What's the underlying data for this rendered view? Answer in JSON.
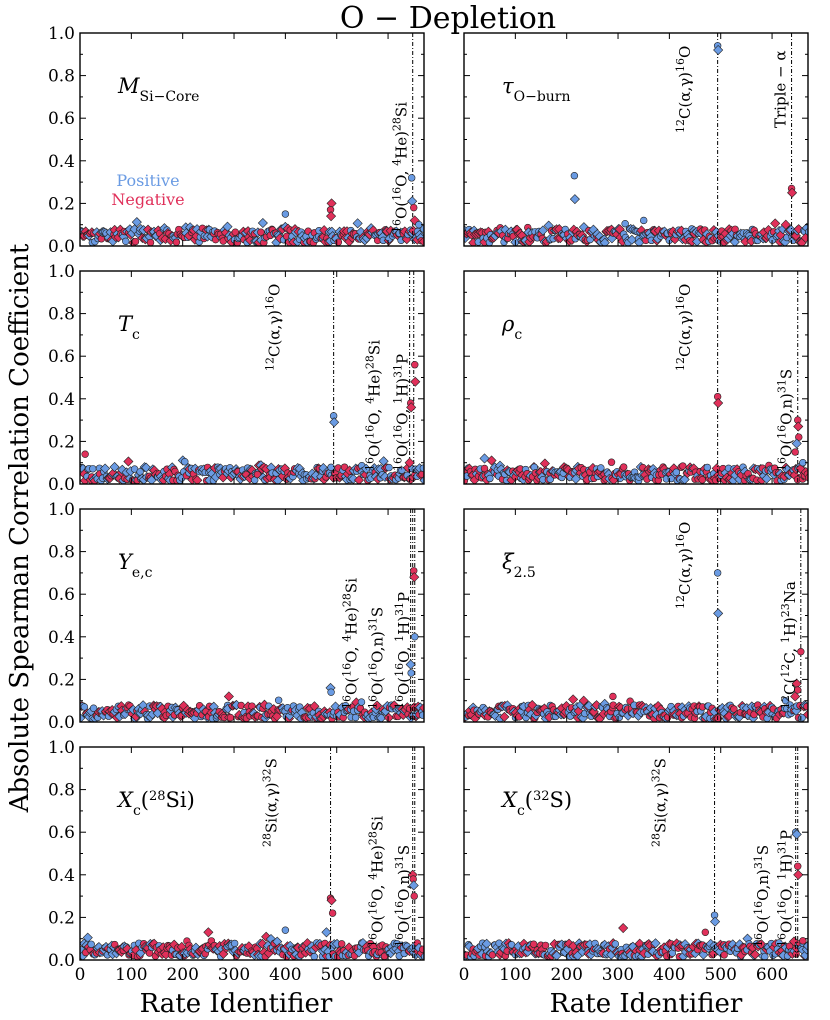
{
  "figure": {
    "title": "O − Depletion",
    "ylabel": "Absolute Spearman Correlation Coefficient",
    "xlabel": "Rate Identifier",
    "legend": [
      {
        "label": "Positive",
        "color": "#6a9be3"
      },
      {
        "label": "Negative",
        "color": "#e0305a"
      }
    ],
    "colors": {
      "positive": "#6a9be3",
      "negative": "#e0305a"
    }
  },
  "chart_data": [
    {
      "type": "scatter",
      "title": "M_Si-Core",
      "label_main": "M",
      "label_sub": "Si−Core",
      "xlim": [
        0,
        670
      ],
      "ylim": [
        0,
        1.0
      ],
      "xticks": [
        "0",
        "100",
        "200",
        "300",
        "400",
        "500",
        "600"
      ],
      "yticks": [
        "0.0",
        "0.2",
        "0.4",
        "0.6",
        "0.8",
        "1.0"
      ],
      "vlines": [
        648
      ],
      "annotations": [
        {
          "text": "16O(16O, 4He)28Si",
          "x": 648
        }
      ],
      "highlights": [
        {
          "x": 400,
          "y": 0.15,
          "sign": "positive"
        },
        {
          "x": 490,
          "y": 0.2,
          "sign": "negative"
        },
        {
          "x": 488,
          "y": 0.17,
          "sign": "negative"
        },
        {
          "x": 489,
          "y": 0.14,
          "sign": "negative"
        },
        {
          "x": 646,
          "y": 0.32,
          "sign": "positive"
        },
        {
          "x": 647,
          "y": 0.21,
          "sign": "positive"
        },
        {
          "x": 650,
          "y": 0.18,
          "sign": "negative"
        },
        {
          "x": 652,
          "y": 0.12,
          "sign": "negative"
        },
        {
          "x": 660,
          "y": 0.1,
          "sign": "positive"
        }
      ]
    },
    {
      "type": "scatter",
      "title": "tau_O-burn",
      "label_main": "τ",
      "label_sub": "O−burn",
      "xlim": [
        0,
        670
      ],
      "ylim": [
        0,
        1.0
      ],
      "xticks": [
        "0",
        "100",
        "200",
        "300",
        "400",
        "500",
        "600"
      ],
      "yticks": [
        "0.0",
        "0.2",
        "0.4",
        "0.6",
        "0.8",
        "1.0"
      ],
      "vlines": [
        494,
        638
      ],
      "annotations": [
        {
          "text": "12C(α,γ)16O",
          "x": 494
        },
        {
          "text": "Triple − α",
          "x": 638
        }
      ],
      "highlights": [
        {
          "x": 494,
          "y": 0.94,
          "sign": "positive"
        },
        {
          "x": 495,
          "y": 0.92,
          "sign": "positive"
        },
        {
          "x": 215,
          "y": 0.33,
          "sign": "positive"
        },
        {
          "x": 216,
          "y": 0.22,
          "sign": "positive"
        },
        {
          "x": 638,
          "y": 0.27,
          "sign": "negative"
        },
        {
          "x": 639,
          "y": 0.25,
          "sign": "negative"
        },
        {
          "x": 350,
          "y": 0.12,
          "sign": "positive"
        }
      ]
    },
    {
      "type": "scatter",
      "title": "T_c",
      "label_main": "T",
      "label_sub": "c",
      "xlim": [
        0,
        670
      ],
      "ylim": [
        0,
        1.0
      ],
      "xticks": [
        "0",
        "100",
        "200",
        "300",
        "400",
        "500",
        "600"
      ],
      "yticks": [
        "0.0",
        "0.2",
        "0.4",
        "0.6",
        "0.8",
        "1.0"
      ],
      "vlines": [
        494,
        642,
        650
      ],
      "annotations": [
        {
          "text": "12C(α,γ)16O",
          "x": 494
        },
        {
          "text": "16O(16O, 4He)28Si",
          "x": 642
        },
        {
          "text": "16O(16O, 1H)31P",
          "x": 650
        }
      ],
      "highlights": [
        {
          "x": 494,
          "y": 0.32,
          "sign": "positive"
        },
        {
          "x": 495,
          "y": 0.29,
          "sign": "positive"
        },
        {
          "x": 652,
          "y": 0.56,
          "sign": "negative"
        },
        {
          "x": 653,
          "y": 0.48,
          "sign": "negative"
        },
        {
          "x": 644,
          "y": 0.38,
          "sign": "negative"
        },
        {
          "x": 645,
          "y": 0.36,
          "sign": "negative"
        },
        {
          "x": 10,
          "y": 0.14,
          "sign": "negative"
        },
        {
          "x": 642,
          "y": 0.1,
          "sign": "negative"
        }
      ]
    },
    {
      "type": "scatter",
      "title": "rho_c",
      "label_main": "ρ",
      "label_sub": "c",
      "xlim": [
        0,
        670
      ],
      "ylim": [
        0,
        1.0
      ],
      "xticks": [
        "0",
        "100",
        "200",
        "300",
        "400",
        "500",
        "600"
      ],
      "yticks": [
        "0.0",
        "0.2",
        "0.4",
        "0.6",
        "0.8",
        "1.0"
      ],
      "vlines": [
        494,
        650
      ],
      "annotations": [
        {
          "text": "12C(α,γ)16O",
          "x": 494
        },
        {
          "text": "16O(16O,n)31S",
          "x": 650
        }
      ],
      "highlights": [
        {
          "x": 494,
          "y": 0.41,
          "sign": "negative"
        },
        {
          "x": 495,
          "y": 0.38,
          "sign": "negative"
        },
        {
          "x": 650,
          "y": 0.3,
          "sign": "negative"
        },
        {
          "x": 651,
          "y": 0.27,
          "sign": "negative"
        },
        {
          "x": 652,
          "y": 0.22,
          "sign": "negative"
        },
        {
          "x": 648,
          "y": 0.19,
          "sign": "positive"
        },
        {
          "x": 645,
          "y": 0.15,
          "sign": "negative"
        },
        {
          "x": 40,
          "y": 0.12,
          "sign": "positive"
        },
        {
          "x": 660,
          "y": 0.1,
          "sign": "positive"
        }
      ]
    },
    {
      "type": "scatter",
      "title": "Y_e,c",
      "label_main": "Y",
      "label_sub": "e,c",
      "xlim": [
        0,
        670
      ],
      "ylim": [
        0,
        1.0
      ],
      "xticks": [
        "0",
        "100",
        "200",
        "300",
        "400",
        "500",
        "600"
      ],
      "yticks": [
        "0.0",
        "0.2",
        "0.4",
        "0.6",
        "0.8",
        "1.0"
      ],
      "vlines": [
        644,
        648,
        652
      ],
      "annotations": [
        {
          "text": "16O(16O, 4He)28Si",
          "x": 644
        },
        {
          "text": "16O(16O,n)31S",
          "x": 648
        },
        {
          "text": "16O(16O, 1H)31P",
          "x": 652
        }
      ],
      "highlights": [
        {
          "x": 650,
          "y": 0.71,
          "sign": "negative"
        },
        {
          "x": 651,
          "y": 0.68,
          "sign": "negative"
        },
        {
          "x": 652,
          "y": 0.4,
          "sign": "positive"
        },
        {
          "x": 644,
          "y": 0.27,
          "sign": "positive"
        },
        {
          "x": 645,
          "y": 0.23,
          "sign": "positive"
        },
        {
          "x": 488,
          "y": 0.16,
          "sign": "positive"
        },
        {
          "x": 489,
          "y": 0.14,
          "sign": "positive"
        },
        {
          "x": 290,
          "y": 0.12,
          "sign": "negative"
        }
      ]
    },
    {
      "type": "scatter",
      "title": "xi_2.5",
      "label_main": "ξ",
      "label_sub": "2.5",
      "xlim": [
        0,
        670
      ],
      "ylim": [
        0,
        1.0
      ],
      "xticks": [
        "0",
        "100",
        "200",
        "300",
        "400",
        "500",
        "600"
      ],
      "yticks": [
        "0.0",
        "0.2",
        "0.4",
        "0.6",
        "0.8",
        "1.0"
      ],
      "vlines": [
        494,
        656
      ],
      "annotations": [
        {
          "text": "12C(α,γ)16O",
          "x": 494
        },
        {
          "text": "12C(12C, 1H)23Na",
          "x": 656
        }
      ],
      "highlights": [
        {
          "x": 494,
          "y": 0.7,
          "sign": "positive"
        },
        {
          "x": 495,
          "y": 0.51,
          "sign": "positive"
        },
        {
          "x": 656,
          "y": 0.33,
          "sign": "negative"
        },
        {
          "x": 648,
          "y": 0.18,
          "sign": "negative"
        },
        {
          "x": 650,
          "y": 0.15,
          "sign": "negative"
        },
        {
          "x": 645,
          "y": 0.12,
          "sign": "negative"
        },
        {
          "x": 290,
          "y": 0.12,
          "sign": "negative"
        }
      ]
    },
    {
      "type": "scatter",
      "title": "X_c(28Si)",
      "label_main": "X",
      "label_sub": "c",
      "label_tail": "(28Si)",
      "xlim": [
        0,
        670
      ],
      "ylim": [
        0,
        1.0
      ],
      "xticks": [
        "0",
        "100",
        "200",
        "300",
        "400",
        "500",
        "600"
      ],
      "yticks": [
        "0.0",
        "0.2",
        "0.4",
        "0.6",
        "0.8",
        "1.0"
      ],
      "vlines": [
        488,
        648,
        652
      ],
      "annotations": [
        {
          "text": "28Si(α,γ)32S",
          "x": 488
        },
        {
          "text": "16O(16O, 4He)28Si",
          "x": 648
        },
        {
          "text": "16O(16O,n)31S",
          "x": 652
        }
      ],
      "highlights": [
        {
          "x": 488,
          "y": 0.29,
          "sign": "negative"
        },
        {
          "x": 490,
          "y": 0.28,
          "sign": "negative"
        },
        {
          "x": 492,
          "y": 0.22,
          "sign": "negative"
        },
        {
          "x": 648,
          "y": 0.4,
          "sign": "negative"
        },
        {
          "x": 649,
          "y": 0.38,
          "sign": "negative"
        },
        {
          "x": 650,
          "y": 0.35,
          "sign": "positive"
        },
        {
          "x": 651,
          "y": 0.3,
          "sign": "negative"
        },
        {
          "x": 480,
          "y": 0.13,
          "sign": "positive"
        },
        {
          "x": 400,
          "y": 0.14,
          "sign": "positive"
        },
        {
          "x": 250,
          "y": 0.13,
          "sign": "negative"
        }
      ]
    },
    {
      "type": "scatter",
      "title": "X_c(32S)",
      "label_main": "X",
      "label_sub": "c",
      "label_tail": "(32S)",
      "xlim": [
        0,
        670
      ],
      "ylim": [
        0,
        1.0
      ],
      "xticks": [
        "0",
        "100",
        "200",
        "300",
        "400",
        "500",
        "600"
      ],
      "yticks": [
        "0.0",
        "0.2",
        "0.4",
        "0.6",
        "0.8",
        "1.0"
      ],
      "vlines": [
        488,
        646,
        650
      ],
      "annotations": [
        {
          "text": "28Si(α,γ)32S",
          "x": 488
        },
        {
          "text": "16O(16O,n)31S",
          "x": 646
        },
        {
          "text": "16O(16O, 1H)31P",
          "x": 650
        }
      ],
      "highlights": [
        {
          "x": 488,
          "y": 0.21,
          "sign": "positive"
        },
        {
          "x": 489,
          "y": 0.18,
          "sign": "positive"
        },
        {
          "x": 646,
          "y": 0.6,
          "sign": "positive"
        },
        {
          "x": 648,
          "y": 0.59,
          "sign": "positive"
        },
        {
          "x": 650,
          "y": 0.44,
          "sign": "negative"
        },
        {
          "x": 651,
          "y": 0.4,
          "sign": "negative"
        },
        {
          "x": 660,
          "y": 0.09,
          "sign": "negative"
        },
        {
          "x": 310,
          "y": 0.15,
          "sign": "negative"
        },
        {
          "x": 470,
          "y": 0.13,
          "sign": "negative"
        }
      ]
    }
  ]
}
